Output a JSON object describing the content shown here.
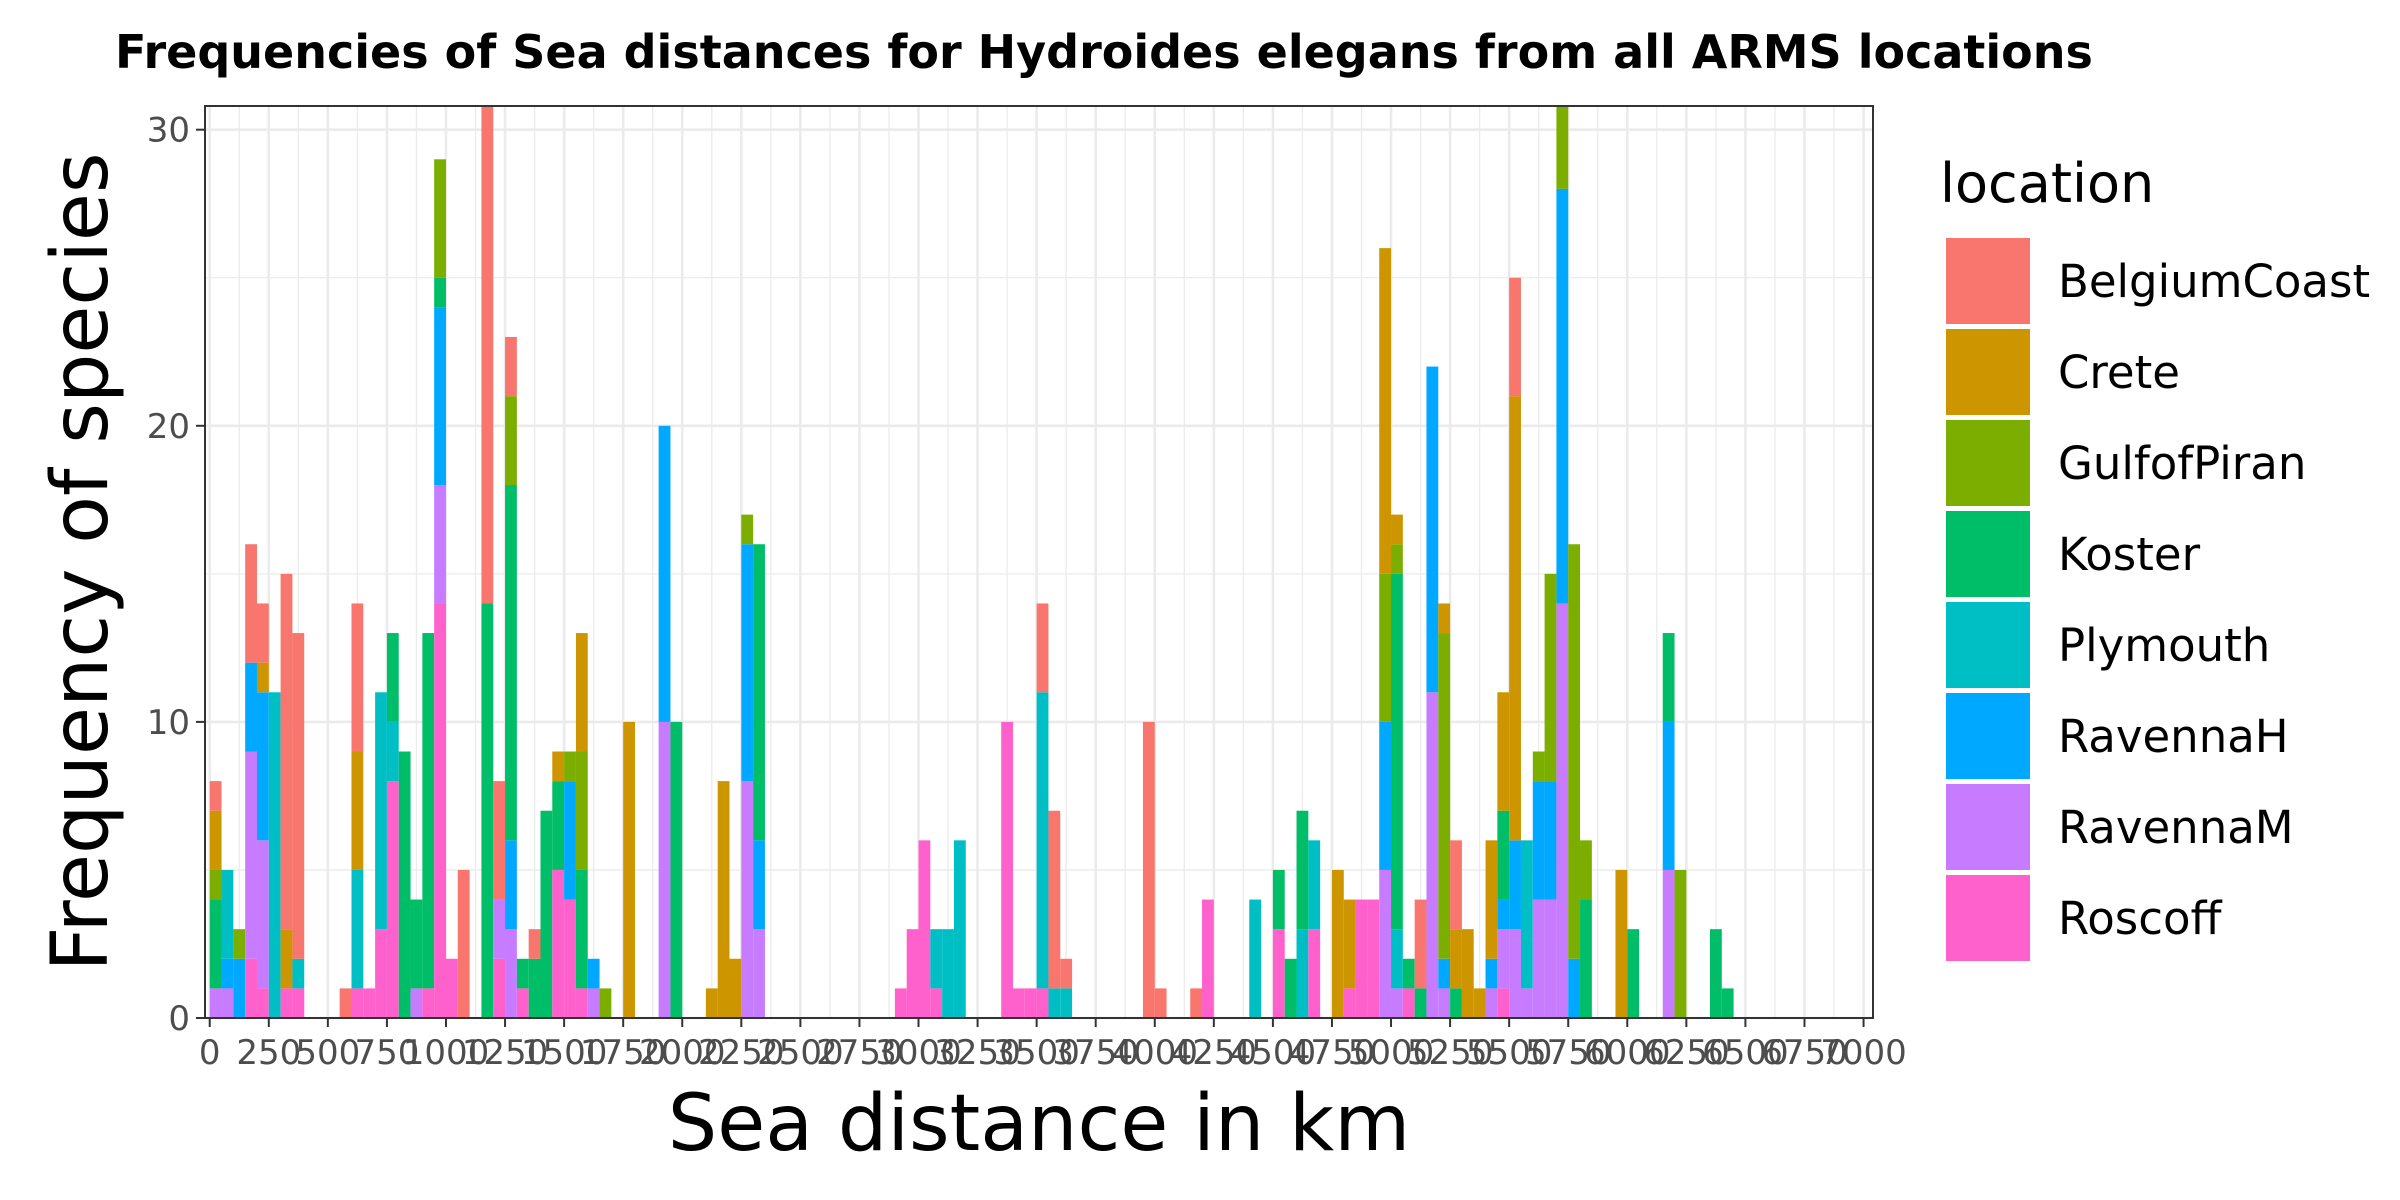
{
  "chart_data": {
    "type": "bar",
    "stacked": true,
    "title": "Frequencies of Sea distances for Hydroides elegans from all ARMS locations",
    "xlabel": "Sea distance in km",
    "ylabel": "Frequency of species",
    "xlim": [
      0,
      7000
    ],
    "ylim": [
      0,
      30
    ],
    "bin_width": 50,
    "x_ticks": [
      0,
      250,
      500,
      750,
      1000,
      1250,
      1500,
      1750,
      2000,
      2250,
      2500,
      2750,
      3000,
      3250,
      3500,
      3750,
      4000,
      4250,
      4500,
      4750,
      5000,
      5250,
      5500,
      5750,
      6000,
      6250,
      6500,
      6750,
      7000
    ],
    "x_tick_labels": [
      "0",
      "250",
      "500",
      "750",
      "1000",
      "1250",
      "1500",
      "1750",
      "2000",
      "2250",
      "2500",
      "2750",
      "3000",
      "3250",
      "3500",
      "3750",
      "4000",
      "4250",
      "4500",
      "4750",
      "5000",
      "5250",
      "5500",
      "5750",
      "6000",
      "6250",
      "6500",
      "6750",
      "7000"
    ],
    "y_ticks": [
      0,
      10,
      20,
      30
    ],
    "y_tick_labels": [
      "0",
      "10",
      "20",
      "30"
    ],
    "grid": true,
    "legend": {
      "title": "location",
      "position": "right",
      "items": [
        {
          "name": "BelgiumCoast",
          "color": "#F8766D"
        },
        {
          "name": "Crete",
          "color": "#CD9600"
        },
        {
          "name": "GulfofPiran",
          "color": "#7CAE00"
        },
        {
          "name": "Koster",
          "color": "#00BE67"
        },
        {
          "name": "Plymouth",
          "color": "#00BFC4"
        },
        {
          "name": "RavennaH",
          "color": "#00A9FF"
        },
        {
          "name": "RavennaM",
          "color": "#C77CFF"
        },
        {
          "name": "Roscoff",
          "color": "#FF61CC"
        }
      ]
    },
    "series_order_bottom_to_top": [
      "Roscoff",
      "RavennaM",
      "RavennaH",
      "Plymouth",
      "Koster",
      "GulfofPiran",
      "Crete",
      "BelgiumCoast"
    ],
    "bins": [
      {
        "x": 25,
        "values": {
          "RavennaM": 1,
          "Koster": 3,
          "GulfofPiran": 1,
          "Crete": 2,
          "BelgiumCoast": 1
        }
      },
      {
        "x": 75,
        "values": {
          "RavennaM": 1,
          "RavennaH": 1,
          "Plymouth": 3
        }
      },
      {
        "x": 125,
        "values": {
          "RavennaH": 2,
          "GulfofPiran": 1
        }
      },
      {
        "x": 175,
        "values": {
          "Roscoff": 2,
          "RavennaM": 7,
          "RavennaH": 3,
          "BelgiumCoast": 4
        }
      },
      {
        "x": 225,
        "values": {
          "Roscoff": 1,
          "RavennaM": 5,
          "RavennaH": 5,
          "Crete": 1,
          "BelgiumCoast": 2
        }
      },
      {
        "x": 275,
        "values": {
          "Plymouth": 11
        }
      },
      {
        "x": 325,
        "values": {
          "Roscoff": 1,
          "Crete": 2,
          "BelgiumCoast": 12
        }
      },
      {
        "x": 375,
        "values": {
          "Roscoff": 1,
          "Plymouth": 1,
          "BelgiumCoast": 11
        }
      },
      {
        "x": 575,
        "values": {
          "BelgiumCoast": 1
        }
      },
      {
        "x": 625,
        "values": {
          "Roscoff": 1,
          "Plymouth": 4,
          "Crete": 4,
          "BelgiumCoast": 5
        }
      },
      {
        "x": 675,
        "values": {
          "Roscoff": 1
        }
      },
      {
        "x": 725,
        "values": {
          "Roscoff": 3,
          "Plymouth": 8
        }
      },
      {
        "x": 775,
        "values": {
          "Roscoff": 8,
          "Plymouth": 2,
          "Koster": 3
        }
      },
      {
        "x": 825,
        "values": {
          "Koster": 9
        }
      },
      {
        "x": 875,
        "values": {
          "RavennaM": 1,
          "Koster": 3
        }
      },
      {
        "x": 925,
        "values": {
          "Roscoff": 1,
          "Koster": 12
        }
      },
      {
        "x": 975,
        "values": {
          "Roscoff": 14,
          "RavennaM": 4,
          "RavennaH": 6,
          "Koster": 1,
          "GulfofPiran": 4
        }
      },
      {
        "x": 1025,
        "values": {
          "Roscoff": 2
        }
      },
      {
        "x": 1075,
        "values": {
          "BelgiumCoast": 5
        }
      },
      {
        "x": 1175,
        "values": {
          "Koster": 14,
          "BelgiumCoast": 17
        }
      },
      {
        "x": 1225,
        "values": {
          "Roscoff": 2,
          "RavennaM": 2,
          "BelgiumCoast": 4
        }
      },
      {
        "x": 1275,
        "values": {
          "RavennaM": 3,
          "RavennaH": 3,
          "Koster": 12,
          "GulfofPiran": 3,
          "BelgiumCoast": 2
        }
      },
      {
        "x": 1325,
        "values": {
          "Roscoff": 1,
          "Koster": 1
        }
      },
      {
        "x": 1375,
        "values": {
          "Koster": 2,
          "BelgiumCoast": 1
        }
      },
      {
        "x": 1425,
        "values": {
          "Koster": 7
        }
      },
      {
        "x": 1475,
        "values": {
          "Roscoff": 5,
          "Koster": 3,
          "Crete": 1
        }
      },
      {
        "x": 1525,
        "values": {
          "Roscoff": 4,
          "RavennaH": 4,
          "GulfofPiran": 1
        }
      },
      {
        "x": 1575,
        "values": {
          "Roscoff": 1,
          "Koster": 4,
          "GulfofPiran": 4,
          "Crete": 4
        }
      },
      {
        "x": 1625,
        "values": {
          "RavennaM": 1,
          "RavennaH": 1
        }
      },
      {
        "x": 1675,
        "values": {
          "GulfofPiran": 1
        }
      },
      {
        "x": 1775,
        "values": {
          "Crete": 10
        }
      },
      {
        "x": 1925,
        "values": {
          "RavennaM": 10,
          "RavennaH": 10
        }
      },
      {
        "x": 1975,
        "values": {
          "Koster": 10
        }
      },
      {
        "x": 2125,
        "values": {
          "Crete": 1
        }
      },
      {
        "x": 2175,
        "values": {
          "Crete": 8
        }
      },
      {
        "x": 2225,
        "values": {
          "Crete": 2
        }
      },
      {
        "x": 2275,
        "values": {
          "RavennaM": 8,
          "RavennaH": 8,
          "GulfofPiran": 1
        }
      },
      {
        "x": 2325,
        "values": {
          "RavennaM": 3,
          "RavennaH": 3,
          "Koster": 10
        }
      },
      {
        "x": 2925,
        "values": {
          "Roscoff": 1
        }
      },
      {
        "x": 2975,
        "values": {
          "Roscoff": 3
        }
      },
      {
        "x": 3025,
        "values": {
          "Roscoff": 6
        }
      },
      {
        "x": 3075,
        "values": {
          "Roscoff": 1,
          "Plymouth": 2
        }
      },
      {
        "x": 3125,
        "values": {
          "Plymouth": 3
        }
      },
      {
        "x": 3175,
        "values": {
          "Plymouth": 6
        }
      },
      {
        "x": 3375,
        "values": {
          "Roscoff": 10
        }
      },
      {
        "x": 3425,
        "values": {
          "Roscoff": 1
        }
      },
      {
        "x": 3475,
        "values": {
          "Roscoff": 1
        }
      },
      {
        "x": 3525,
        "values": {
          "Roscoff": 1,
          "Plymouth": 10,
          "BelgiumCoast": 3
        }
      },
      {
        "x": 3575,
        "values": {
          "Plymouth": 1,
          "BelgiumCoast": 6
        }
      },
      {
        "x": 3625,
        "values": {
          "Plymouth": 1,
          "BelgiumCoast": 1
        }
      },
      {
        "x": 3975,
        "values": {
          "BelgiumCoast": 10
        }
      },
      {
        "x": 4025,
        "values": {
          "BelgiumCoast": 1
        }
      },
      {
        "x": 4175,
        "values": {
          "BelgiumCoast": 1
        }
      },
      {
        "x": 4225,
        "values": {
          "Roscoff": 4
        }
      },
      {
        "x": 4425,
        "values": {
          "Plymouth": 4
        }
      },
      {
        "x": 4525,
        "values": {
          "Roscoff": 3,
          "Koster": 2
        }
      },
      {
        "x": 4575,
        "values": {
          "Koster": 2
        }
      },
      {
        "x": 4625,
        "values": {
          "Plymouth": 3,
          "Koster": 4
        }
      },
      {
        "x": 4675,
        "values": {
          "Roscoff": 3,
          "Plymouth": 3
        }
      },
      {
        "x": 4775,
        "values": {
          "Crete": 5
        }
      },
      {
        "x": 4825,
        "values": {
          "Roscoff": 1,
          "Crete": 3
        }
      },
      {
        "x": 4875,
        "values": {
          "Roscoff": 4
        }
      },
      {
        "x": 4925,
        "values": {
          "Roscoff": 4
        }
      },
      {
        "x": 4975,
        "values": {
          "RavennaM": 5,
          "RavennaH": 5,
          "GulfofPiran": 5,
          "Crete": 11
        }
      },
      {
        "x": 5025,
        "values": {
          "RavennaM": 1,
          "Plymouth": 2,
          "Koster": 12,
          "GulfofPiran": 1,
          "Crete": 1
        }
      },
      {
        "x": 5075,
        "values": {
          "Roscoff": 1,
          "Koster": 1
        }
      },
      {
        "x": 5125,
        "values": {
          "Koster": 1,
          "BelgiumCoast": 3
        }
      },
      {
        "x": 5175,
        "values": {
          "RavennaM": 11,
          "RavennaH": 11
        }
      },
      {
        "x": 5225,
        "values": {
          "RavennaM": 1,
          "RavennaH": 1,
          "GulfofPiran": 11,
          "Crete": 1
        }
      },
      {
        "x": 5275,
        "values": {
          "Koster": 1,
          "Crete": 2,
          "BelgiumCoast": 3
        }
      },
      {
        "x": 5325,
        "values": {
          "Crete": 3
        }
      },
      {
        "x": 5375,
        "values": {
          "Crete": 1
        }
      },
      {
        "x": 5425,
        "values": {
          "RavennaM": 1,
          "RavennaH": 1,
          "Crete": 4
        }
      },
      {
        "x": 5475,
        "values": {
          "Roscoff": 1,
          "RavennaM": 2,
          "RavennaH": 1,
          "Koster": 3,
          "Crete": 4
        }
      },
      {
        "x": 5525,
        "values": {
          "RavennaM": 3,
          "RavennaH": 3,
          "Crete": 15,
          "BelgiumCoast": 4
        }
      },
      {
        "x": 5575,
        "values": {
          "RavennaM": 1,
          "Plymouth": 5
        }
      },
      {
        "x": 5625,
        "values": {
          "RavennaM": 4,
          "RavennaH": 4,
          "GulfofPiran": 1
        }
      },
      {
        "x": 5675,
        "values": {
          "RavennaM": 4,
          "RavennaH": 4,
          "GulfofPiran": 7
        }
      },
      {
        "x": 5725,
        "values": {
          "RavennaM": 14,
          "RavennaH": 14,
          "GulfofPiran": 3
        }
      },
      {
        "x": 5775,
        "values": {
          "RavennaH": 2,
          "GulfofPiran": 14
        }
      },
      {
        "x": 5825,
        "values": {
          "Koster": 4,
          "GulfofPiran": 2
        }
      },
      {
        "x": 5975,
        "values": {
          "Crete": 5
        }
      },
      {
        "x": 6025,
        "values": {
          "Koster": 3
        }
      },
      {
        "x": 6175,
        "values": {
          "RavennaM": 5,
          "RavennaH": 5,
          "Koster": 3
        }
      },
      {
        "x": 6225,
        "values": {
          "GulfofPiran": 5
        }
      },
      {
        "x": 6375,
        "values": {
          "Koster": 3
        }
      },
      {
        "x": 6425,
        "values": {
          "Koster": 1
        }
      }
    ]
  }
}
